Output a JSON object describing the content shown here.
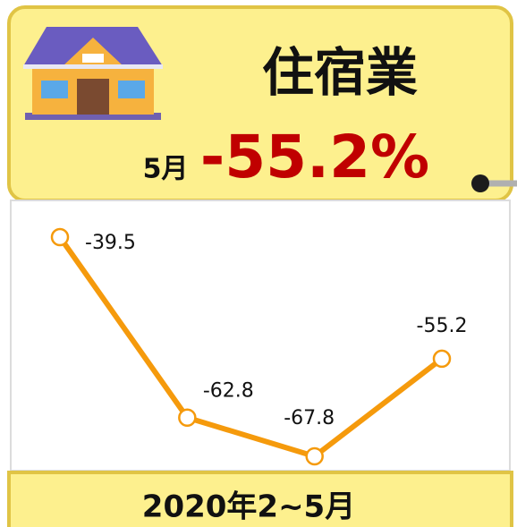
{
  "chart_data": {
    "type": "line",
    "title": "住宿業",
    "month_label": "5月",
    "headline": "-55.2%",
    "footer": "2020年2~5月",
    "categories": [
      null,
      null,
      null,
      null
    ],
    "series": [
      {
        "name": null,
        "color": "#f59a0c",
        "values": [
          -39.5,
          -62.8,
          -67.8,
          -55.2
        ]
      }
    ]
  }
}
